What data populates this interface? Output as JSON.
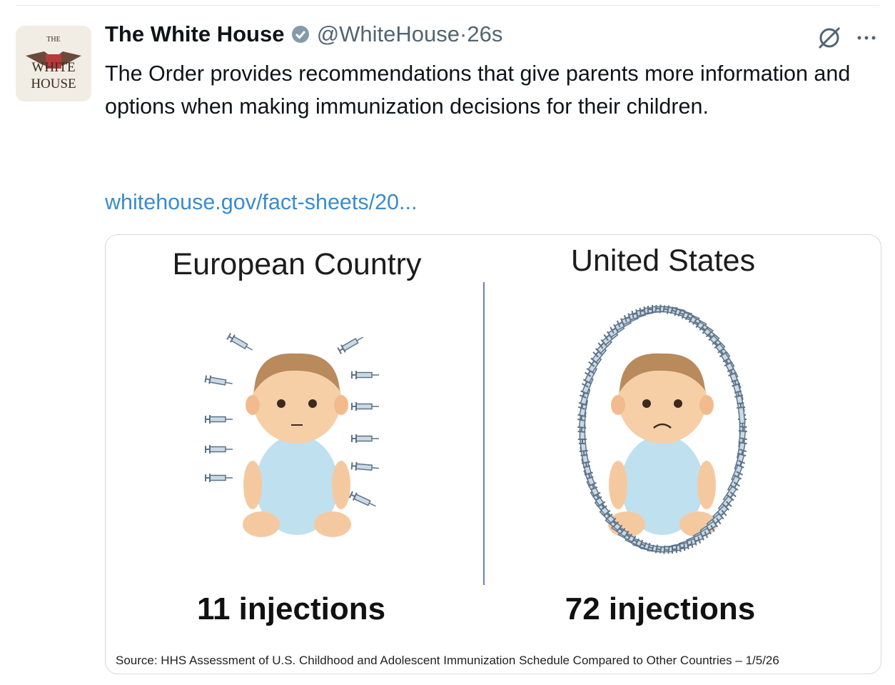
{
  "tweet": {
    "avatar": {
      "lines": [
        "THE",
        "WHITE",
        "HOUSE"
      ]
    },
    "author": {
      "name": "The White House",
      "handle": "@WhiteHouse",
      "separator": "·",
      "time": "26s"
    },
    "text": "The Order provides recommendations that give parents more information and options when making immunization decisions for their children.",
    "link": "whitehouse.gov/fact-sheets/20...",
    "image": {
      "left": {
        "title": "European Country",
        "caption": "11 injections"
      },
      "right": {
        "title": "United States",
        "caption": "72 injections"
      },
      "source": "Source: HHS Assessment of U.S. Childhood and Adolescent Immunization Schedule Compared to Other Countries – 1/5/26"
    }
  }
}
